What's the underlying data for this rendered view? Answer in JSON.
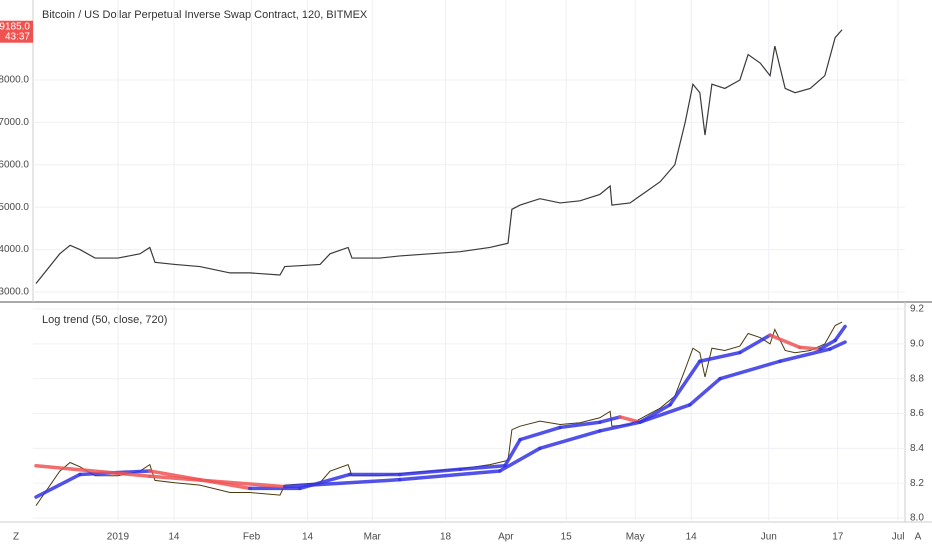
{
  "chart_data": [
    {
      "type": "line",
      "title": "Bitcoin / US Dollar Perpetual Inverse Swap Contract, 120, BITMEX",
      "color": "#3a3a3a",
      "x": [
        -19.0,
        -13.5,
        -11.1,
        -8.8,
        -5.3,
        0,
        5.1,
        7.4,
        8.6,
        13.2,
        19.0,
        26.0,
        30.6,
        37.6,
        38.7,
        42.2,
        46.9,
        49.2,
        53.4,
        54.3,
        60.8,
        65.4,
        72.4,
        79.4,
        86.3,
        90.5,
        91.4,
        93.3,
        97.9,
        102.6,
        107.2,
        111.8,
        114.2,
        114.6,
        118.8,
        122.3,
        125.8,
        129.2,
        131.6,
        133.4,
        135.0,
        136.2,
        137.8,
        140.8,
        144.3,
        146.2,
        149.0,
        151.3,
        152.4,
        154.8,
        157.1,
        160.6,
        164.0,
        166.4,
        168.0
      ],
      "values": [
        3200,
        3900,
        4100,
        4000,
        3800,
        3800,
        3900,
        4050,
        3700,
        3650,
        3600,
        3450,
        3450,
        3400,
        3600,
        3620,
        3650,
        3900,
        4050,
        3800,
        3800,
        3850,
        3900,
        3950,
        4050,
        4150,
        4950,
        5050,
        5200,
        5100,
        5150,
        5300,
        5500,
        5050,
        5100,
        5350,
        5600,
        6000,
        7000,
        7900,
        7700,
        6700,
        7900,
        7800,
        8000,
        8600,
        8400,
        8100,
        8800,
        7800,
        7700,
        7800,
        8100,
        9000,
        9185
      ],
      "last_label": "9185.0",
      "countdown": "43:37",
      "label_color": "#ef5350",
      "ylim": [
        2811,
        9650
      ],
      "yticks": [
        {
          "value": 3000,
          "label": "3000.0"
        },
        {
          "value": 4000,
          "label": "4000.0"
        },
        {
          "value": 5000,
          "label": "5000.0"
        },
        {
          "value": 6000,
          "label": "6000.0"
        },
        {
          "value": 7000,
          "label": "7000.0"
        },
        {
          "value": 8000,
          "label": "8000.0"
        }
      ],
      "xlim": [
        -19.7,
        182.6
      ],
      "xticks": [
        {
          "value": 0,
          "label": "2019"
        },
        {
          "value": 13,
          "label": "14"
        },
        {
          "value": 31,
          "label": "Feb"
        },
        {
          "value": 44,
          "label": "14"
        },
        {
          "value": 59,
          "label": "Mar"
        },
        {
          "value": 76,
          "label": "18"
        },
        {
          "value": 90,
          "label": "Apr"
        },
        {
          "value": 104,
          "label": "15"
        },
        {
          "value": 120,
          "label": "May"
        },
        {
          "value": 133,
          "label": "14"
        },
        {
          "value": 151,
          "label": "Jun"
        },
        {
          "value": 167,
          "label": "17"
        },
        {
          "value": 181,
          "label": "Jul"
        }
      ],
      "grid": true
    },
    {
      "type": "log_trend",
      "title": "Log trend (50, close, 720)",
      "price_color": "#4a3a10",
      "series": [
        {
          "color": "#3434e6",
          "down_color": "#f05454",
          "x": [
            -19,
            -8.8,
            7.4,
            19,
            30.6,
            42.2,
            53.8,
            65.4,
            79.4,
            89.8,
            93.3,
            102.6,
            111.8,
            116.5,
            121.1,
            128.1,
            135,
            144.3,
            151.3,
            158.2,
            162.9,
            166.4,
            168.7
          ],
          "values": [
            8.12,
            8.25,
            8.27,
            8.22,
            8.17,
            8.17,
            8.25,
            8.25,
            8.28,
            8.3,
            8.45,
            8.52,
            8.55,
            8.58,
            8.55,
            8.65,
            8.9,
            8.95,
            9.05,
            8.98,
            8.97,
            9.02,
            9.1
          ]
        },
        {
          "color": "#3434e6",
          "down_color": "#f05454",
          "x": [
            -19,
            7.4,
            38.7,
            65.4,
            88.6,
            97.9,
            111.8,
            121.1,
            132.7,
            139.7,
            153.6,
            165.2,
            168.7
          ],
          "values": [
            8.3,
            8.24,
            8.18,
            8.22,
            8.27,
            8.4,
            8.5,
            8.55,
            8.65,
            8.8,
            8.9,
            8.97,
            9.01
          ]
        }
      ],
      "ylim": [
        7.977,
        9.223
      ],
      "yticks": [
        {
          "value": 8.0,
          "label": "8.0"
        },
        {
          "value": 8.2,
          "label": "8.2"
        },
        {
          "value": 8.4,
          "label": "8.4"
        },
        {
          "value": 8.6,
          "label": "8.6"
        },
        {
          "value": 8.8,
          "label": "8.8"
        },
        {
          "value": 9.0,
          "label": "9.0"
        },
        {
          "value": 9.2,
          "label": "9.2"
        }
      ],
      "grid": true
    }
  ],
  "buttons": [
    "Z",
    "A"
  ]
}
